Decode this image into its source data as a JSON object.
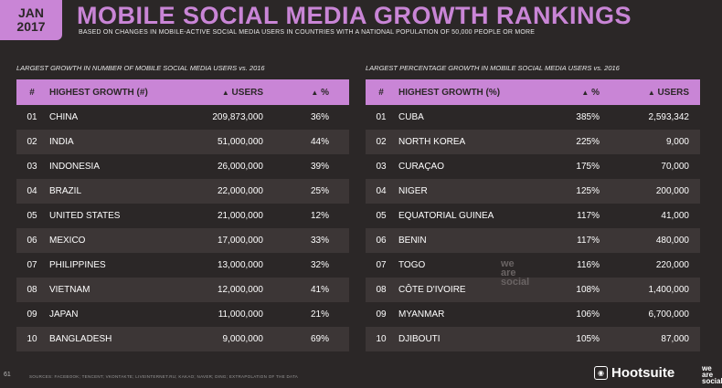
{
  "header": {
    "date_month": "JAN",
    "date_year": "2017",
    "title": "MOBILE SOCIAL MEDIA GROWTH RANKINGS",
    "subtitle": "BASED ON CHANGES IN MOBILE-ACTIVE SOCIAL MEDIA USERS IN COUNTRIES WITH A NATIONAL POPULATION OF 50,000 PEOPLE OR MORE"
  },
  "left": {
    "section_title": "LARGEST GROWTH IN NUMBER OF MOBILE SOCIAL MEDIA USERS vs. 2016",
    "headers": {
      "num": "#",
      "name": "HIGHEST GROWTH (#)",
      "col_a": "USERS",
      "col_b": "%"
    },
    "rows": [
      {
        "num": "01",
        "name": "CHINA",
        "a": "209,873,000",
        "b": "36%"
      },
      {
        "num": "02",
        "name": "INDIA",
        "a": "51,000,000",
        "b": "44%"
      },
      {
        "num": "03",
        "name": "INDONESIA",
        "a": "26,000,000",
        "b": "39%"
      },
      {
        "num": "04",
        "name": "BRAZIL",
        "a": "22,000,000",
        "b": "25%"
      },
      {
        "num": "05",
        "name": "UNITED STATES",
        "a": "21,000,000",
        "b": "12%"
      },
      {
        "num": "06",
        "name": "MEXICO",
        "a": "17,000,000",
        "b": "33%"
      },
      {
        "num": "07",
        "name": "PHILIPPINES",
        "a": "13,000,000",
        "b": "32%"
      },
      {
        "num": "08",
        "name": "VIETNAM",
        "a": "12,000,000",
        "b": "41%"
      },
      {
        "num": "09",
        "name": "JAPAN",
        "a": "11,000,000",
        "b": "21%"
      },
      {
        "num": "10",
        "name": "BANGLADESH",
        "a": "9,000,000",
        "b": "69%"
      }
    ]
  },
  "right": {
    "section_title": "LARGEST PERCENTAGE GROWTH IN MOBILE SOCIAL MEDIA USERS vs. 2016",
    "headers": {
      "num": "#",
      "name": "HIGHEST GROWTH (%)",
      "col_a": "%",
      "col_b": "USERS"
    },
    "rows": [
      {
        "num": "01",
        "name": "CUBA",
        "a": "385%",
        "b": "2,593,342"
      },
      {
        "num": "02",
        "name": "NORTH KOREA",
        "a": "225%",
        "b": "9,000"
      },
      {
        "num": "03",
        "name": "CURAÇAO",
        "a": "175%",
        "b": "70,000"
      },
      {
        "num": "04",
        "name": "NIGER",
        "a": "125%",
        "b": "200,000"
      },
      {
        "num": "05",
        "name": "EQUATORIAL GUINEA",
        "a": "117%",
        "b": "41,000"
      },
      {
        "num": "06",
        "name": "BENIN",
        "a": "117%",
        "b": "480,000"
      },
      {
        "num": "07",
        "name": "TOGO",
        "a": "116%",
        "b": "220,000"
      },
      {
        "num": "08",
        "name": "CÔTE D'IVOIRE",
        "a": "108%",
        "b": "1,400,000"
      },
      {
        "num": "09",
        "name": "MYANMAR",
        "a": "106%",
        "b": "6,700,000"
      },
      {
        "num": "10",
        "name": "DJIBOUTI",
        "a": "105%",
        "b": "87,000"
      }
    ]
  },
  "footer": {
    "page_number": "61",
    "sources": "SOURCES: FACEBOOK; TENCENT; VKONTAKTE; LIVEINTERNET.RU; KAKAO; NAVER; DING; EXTRAPOLATION OF THE DATA",
    "brand_name": "Hootsuite",
    "we_are_social": [
      "we",
      "are",
      "social"
    ]
  },
  "watermark": [
    "we",
    "are",
    "social"
  ],
  "icons": {
    "header_up_arrow": "triangle-up-icon",
    "brand_logo": "owl-icon"
  },
  "colors": {
    "accent": "#c985d6",
    "background": "#2b2727",
    "row_alt": "#3c3636"
  }
}
